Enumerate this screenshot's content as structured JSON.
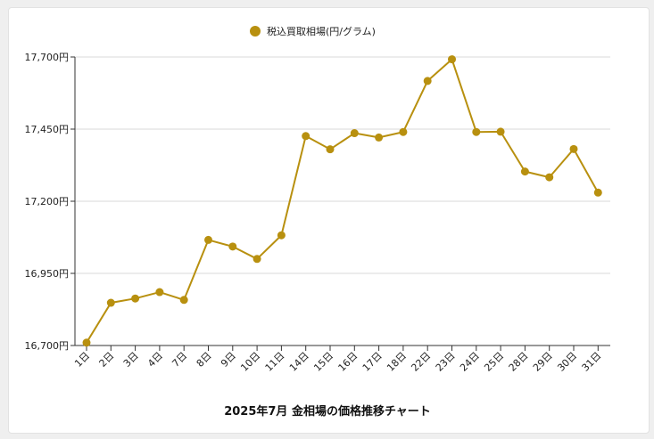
{
  "chart_data": {
    "type": "line",
    "title": "2025年7月 金相場の価格推移チャート",
    "legend": "税込買取相場(円/グラム)",
    "legend_position": "top",
    "color": "#b8900f",
    "grid": true,
    "ylim": [
      16700,
      17700
    ],
    "yticks": [
      16700,
      16950,
      17200,
      17450,
      17700
    ],
    "ytick_labels": [
      "16,700円",
      "16,950円",
      "17,200円",
      "17,450円",
      "17,700円"
    ],
    "categories": [
      "1日",
      "2日",
      "3日",
      "4日",
      "7日",
      "8日",
      "9日",
      "10日",
      "11日",
      "14日",
      "15日",
      "16日",
      "17日",
      "18日",
      "22日",
      "23日",
      "24日",
      "25日",
      "28日",
      "29日",
      "30日",
      "31日"
    ],
    "series": [
      {
        "name": "税込買取相場(円/グラム)",
        "values": [
          16710,
          16848,
          16863,
          16885,
          16858,
          17066,
          17043,
          17000,
          17082,
          17426,
          17380,
          17436,
          17421,
          17440,
          17617,
          17692,
          17440,
          17441,
          17303,
          17283,
          17381,
          17230
        ]
      }
    ]
  }
}
